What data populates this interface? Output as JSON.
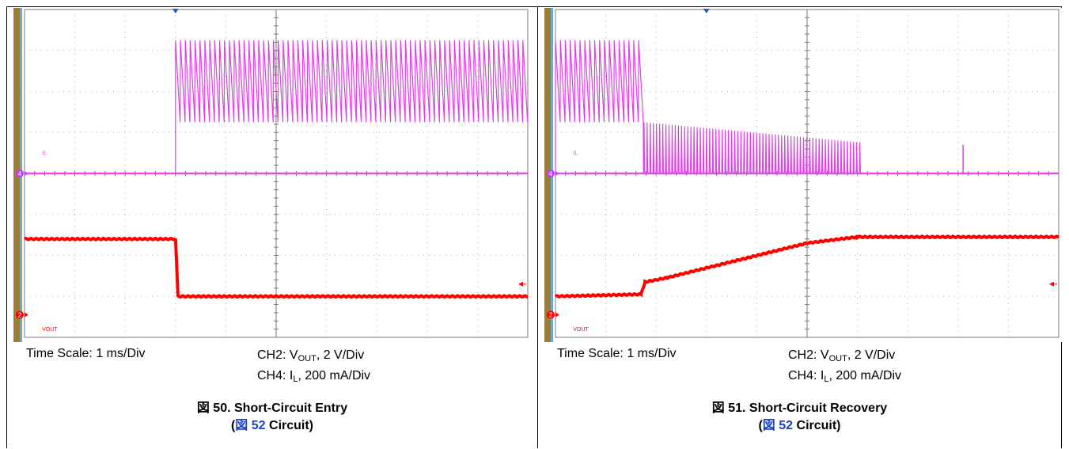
{
  "colors": {
    "current_trace": "#e040e6",
    "vout_trace": "#ff0000",
    "grid": "#7a7a7a",
    "link": "#1a3fd6",
    "bezel": "#9a7d3a",
    "ch4_marker": "#c040ff",
    "ch2_marker": "#ff0000"
  },
  "panels": [
    {
      "time_scale": "Time Scale: 1 ms/Div",
      "ch2_label": "CH2: V",
      "ch2_sub": "OUT",
      "ch2_rest": ", 2 V/Div",
      "ch4_label": "CH4: I",
      "ch4_sub": "L",
      "ch4_rest": ", 200 mA/Div",
      "fig_prefix": "図 50. Short-Circuit Entry",
      "circuit_open": "(",
      "circuit_fig": "図",
      "circuit_num": "52",
      "circuit_close": " Circuit)"
    },
    {
      "time_scale": "Time Scale: 1 ms/Div",
      "ch2_label": "CH2: V",
      "ch2_sub": "OUT",
      "ch2_rest": ", 2 V/Div",
      "ch4_label": "CH4: I",
      "ch4_sub": "L",
      "ch4_rest": ", 200 mA/Div",
      "fig_prefix": "図 51. Short-Circuit Recovery",
      "circuit_open": "(",
      "circuit_fig": "図",
      "circuit_num": "52",
      "circuit_close": " Circuit)"
    }
  ],
  "chart_data": [
    {
      "type": "line",
      "title": "Short-Circuit Entry",
      "x_unit": "div",
      "xlim": [
        0,
        10
      ],
      "ylim": [
        0,
        8
      ],
      "grid": true,
      "trace_labels": [
        "IL",
        "VOUT"
      ],
      "channel_markers": [
        "4",
        "2"
      ],
      "series": [
        {
          "name": "IL",
          "ch": 4,
          "baseline_div": 4.0,
          "segments": [
            {
              "x0": 0,
              "x1": 3.0,
              "kind": "flat",
              "level": 4.0
            },
            {
              "x0": 3.0,
              "x1": 10,
              "kind": "sawtooth",
              "low": 5.25,
              "high": 7.25,
              "cycles": 72
            }
          ]
        },
        {
          "name": "VOUT",
          "ch": 2,
          "baseline_div": 1.0,
          "points": [
            [
              0,
              2.4
            ],
            [
              3.0,
              2.4
            ],
            [
              3.05,
              1.0
            ],
            [
              10,
              1.0
            ]
          ]
        }
      ]
    },
    {
      "type": "line",
      "title": "Short-Circuit Recovery",
      "x_unit": "div",
      "xlim": [
        0,
        10
      ],
      "ylim": [
        0,
        8
      ],
      "grid": true,
      "trace_labels": [
        "IL",
        "VOUT"
      ],
      "channel_markers": [
        "4",
        "2"
      ],
      "series": [
        {
          "name": "IL",
          "ch": 4,
          "baseline_div": 4.0,
          "segments": [
            {
              "x0": 0,
              "x1": 1.75,
              "kind": "sawtooth",
              "low": 5.25,
              "high": 7.25,
              "cycles": 18
            },
            {
              "x0": 1.75,
              "x1": 6.1,
              "kind": "spikes",
              "base": 4.0,
              "start_peak": 5.25,
              "end_peak": 4.75,
              "cycles": 70
            },
            {
              "x0": 6.1,
              "x1": 10,
              "kind": "flat",
              "level": 4.0
            },
            {
              "x0": 8.1,
              "x1": 8.12,
              "kind": "spike",
              "base": 4.0,
              "peak": 4.7
            }
          ]
        },
        {
          "name": "VOUT",
          "ch": 2,
          "baseline_div": 1.0,
          "points": [
            [
              0,
              1.0
            ],
            [
              1.7,
              1.05
            ],
            [
              1.78,
              1.35
            ],
            [
              2.2,
              1.45
            ],
            [
              5.0,
              2.3
            ],
            [
              6.0,
              2.45
            ],
            [
              10,
              2.45
            ]
          ]
        }
      ]
    }
  ]
}
